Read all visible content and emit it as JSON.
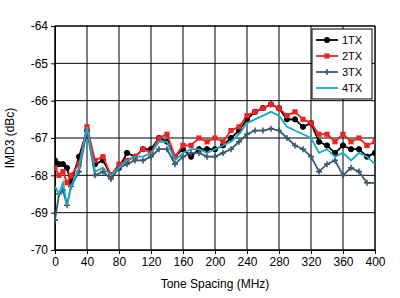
{
  "chart_data": {
    "type": "line",
    "x_label": "Tone Spacing (MHz)",
    "y_label": "IMD3 (dBc)",
    "x": [
      0,
      5,
      10,
      15,
      20,
      30,
      40,
      50,
      60,
      70,
      80,
      90,
      100,
      110,
      120,
      130,
      140,
      150,
      160,
      170,
      180,
      190,
      200,
      210,
      220,
      230,
      240,
      250,
      260,
      270,
      280,
      290,
      300,
      310,
      320,
      330,
      340,
      350,
      360,
      370,
      380,
      390,
      400
    ],
    "series": [
      {
        "name": "1TX",
        "color": "#000000",
        "marker": "circle",
        "values": [
          -67.6,
          -67.7,
          -67.7,
          -67.8,
          -68.2,
          -67.5,
          -66.8,
          -67.7,
          -67.6,
          -68.0,
          -67.8,
          -67.4,
          -67.5,
          -67.3,
          -67.3,
          -67.0,
          -67.1,
          -67.5,
          -67.3,
          -67.5,
          -67.3,
          -67.3,
          -67.3,
          -67.2,
          -67.0,
          -66.8,
          -66.5,
          -66.3,
          -66.2,
          -66.1,
          -66.2,
          -66.5,
          -66.5,
          -66.7,
          -66.6,
          -67.1,
          -67.2,
          -67.4,
          -67.2,
          -67.3,
          -67.3,
          -67.5,
          -67.4
        ]
      },
      {
        "name": "2TX",
        "color": "#ee2222",
        "marker": "square",
        "values": [
          -67.8,
          -68.0,
          -67.9,
          -68.2,
          -68.0,
          -67.7,
          -66.7,
          -67.6,
          -67.5,
          -68.0,
          -67.7,
          -67.6,
          -67.5,
          -67.3,
          -67.4,
          -67.0,
          -66.9,
          -67.5,
          -67.2,
          -67.2,
          -67.0,
          -67.1,
          -67.0,
          -67.1,
          -66.8,
          -66.7,
          -66.4,
          -66.3,
          -66.2,
          -66.1,
          -66.2,
          -66.4,
          -66.3,
          -66.5,
          -66.6,
          -66.9,
          -66.9,
          -67.1,
          -66.9,
          -67.1,
          -67.0,
          -67.2,
          -67.1
        ]
      },
      {
        "name": "3TX",
        "color": "#3b5a6e",
        "marker": "plus",
        "values": [
          -69.2,
          -68.5,
          -68.4,
          -68.8,
          -68.3,
          -67.9,
          -66.8,
          -68.0,
          -67.9,
          -68.1,
          -67.8,
          -67.7,
          -67.6,
          -67.6,
          -67.5,
          -67.3,
          -67.3,
          -67.7,
          -67.5,
          -67.4,
          -67.4,
          -67.5,
          -67.5,
          -67.4,
          -67.3,
          -67.1,
          -66.9,
          -66.8,
          -66.8,
          -66.75,
          -66.8,
          -67.0,
          -67.2,
          -67.3,
          -67.5,
          -67.9,
          -67.7,
          -67.6,
          -68.0,
          -67.8,
          -67.9,
          -68.2,
          -68.2
        ]
      },
      {
        "name": "4TX",
        "color": "#1aa8c8",
        "marker": "none",
        "values": [
          -68.3,
          -68.5,
          -68.2,
          -68.8,
          -68.3,
          -67.8,
          -66.7,
          -67.9,
          -67.8,
          -68.0,
          -67.8,
          -67.6,
          -67.5,
          -67.5,
          -67.4,
          -67.1,
          -67.1,
          -67.6,
          -67.4,
          -67.3,
          -67.3,
          -67.4,
          -67.3,
          -67.2,
          -67.1,
          -66.9,
          -66.6,
          -66.5,
          -66.4,
          -66.3,
          -66.4,
          -66.7,
          -66.8,
          -66.9,
          -67.0,
          -67.4,
          -67.3,
          -67.5,
          -67.4,
          -67.6,
          -67.4,
          -67.5,
          -67.7
        ]
      }
    ],
    "xlim": [
      0,
      400
    ],
    "xticks": [
      0,
      40,
      80,
      120,
      160,
      200,
      240,
      280,
      320,
      360,
      400
    ],
    "ylim": [
      -70,
      -64
    ],
    "yticks": [
      -70,
      -69,
      -68,
      -67,
      -66,
      -65,
      -64
    ],
    "grid": true,
    "legend": "top-right"
  }
}
